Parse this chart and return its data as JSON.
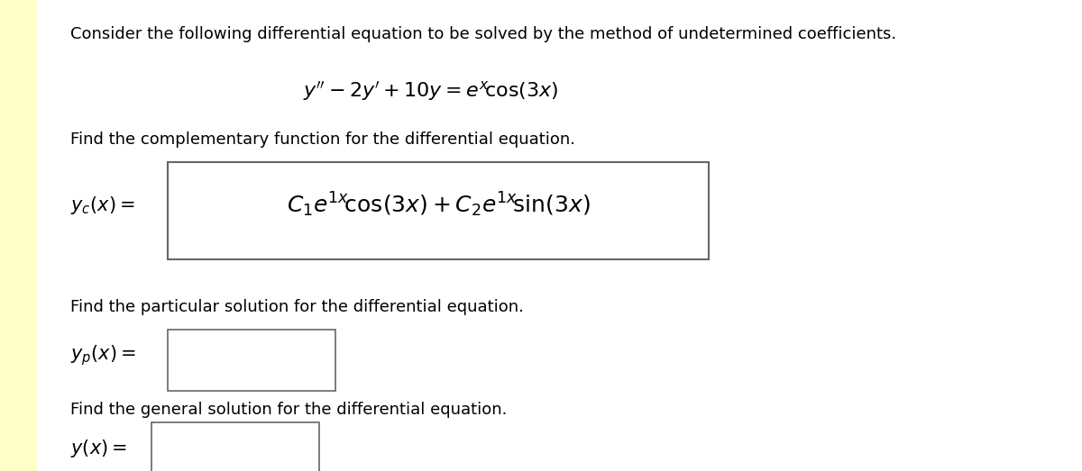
{
  "bg_color": "#ffffff",
  "left_bar_color": "#ffffc8",
  "left_bar_width": 0.033,
  "text_color": "#000000",
  "fig_width": 12.0,
  "fig_height": 5.23,
  "dpi": 100,
  "font_size_body": 13.0,
  "font_size_math": 15.0,
  "font_size_math_large": 18.0,
  "lm": 0.065,
  "title": "Consider the following differential equation to be solved by the method of undetermined coefficients.",
  "find_complementary": "Find the complementary function for the differential equation.",
  "find_particular": "Find the particular solution for the differential equation.",
  "find_general": "Find the general solution for the differential equation."
}
